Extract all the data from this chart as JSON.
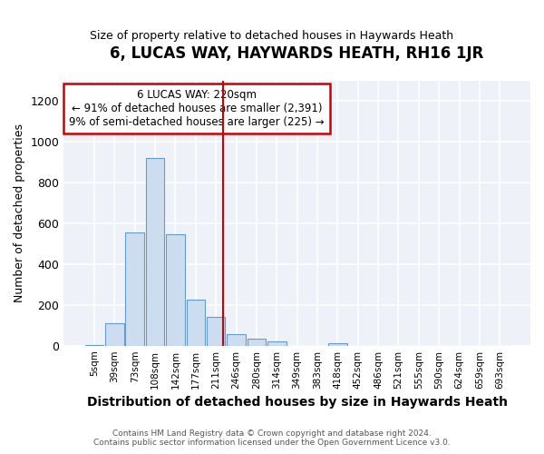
{
  "title": "6, LUCAS WAY, HAYWARDS HEATH, RH16 1JR",
  "subtitle": "Size of property relative to detached houses in Haywards Heath",
  "xlabel": "Distribution of detached houses by size in Haywards Heath",
  "ylabel": "Number of detached properties",
  "categories": [
    "5sqm",
    "39sqm",
    "73sqm",
    "108sqm",
    "142sqm",
    "177sqm",
    "211sqm",
    "246sqm",
    "280sqm",
    "314sqm",
    "349sqm",
    "383sqm",
    "418sqm",
    "452sqm",
    "486sqm",
    "521sqm",
    "555sqm",
    "590sqm",
    "624sqm",
    "659sqm",
    "693sqm"
  ],
  "values": [
    5,
    110,
    555,
    920,
    545,
    225,
    140,
    55,
    35,
    20,
    0,
    0,
    10,
    0,
    0,
    0,
    0,
    0,
    0,
    0,
    0
  ],
  "bar_color": "#ccddf0",
  "bar_edge_color": "#6699cc",
  "ylim": [
    0,
    1300
  ],
  "yticks": [
    0,
    200,
    400,
    600,
    800,
    1000,
    1200
  ],
  "red_line_x": 6.35,
  "annotation_text": "6 LUCAS WAY: 220sqm\n← 91% of detached houses are smaller (2,391)\n9% of semi-detached houses are larger (225) →",
  "annotation_box_color": "#ffffff",
  "annotation_box_edge_color": "#cc0000",
  "footer_line1": "Contains HM Land Registry data © Crown copyright and database right 2024.",
  "footer_line2": "Contains public sector information licensed under the Open Government Licence v3.0.",
  "background_color": "#ffffff",
  "plot_background_color": "#eef2f8"
}
